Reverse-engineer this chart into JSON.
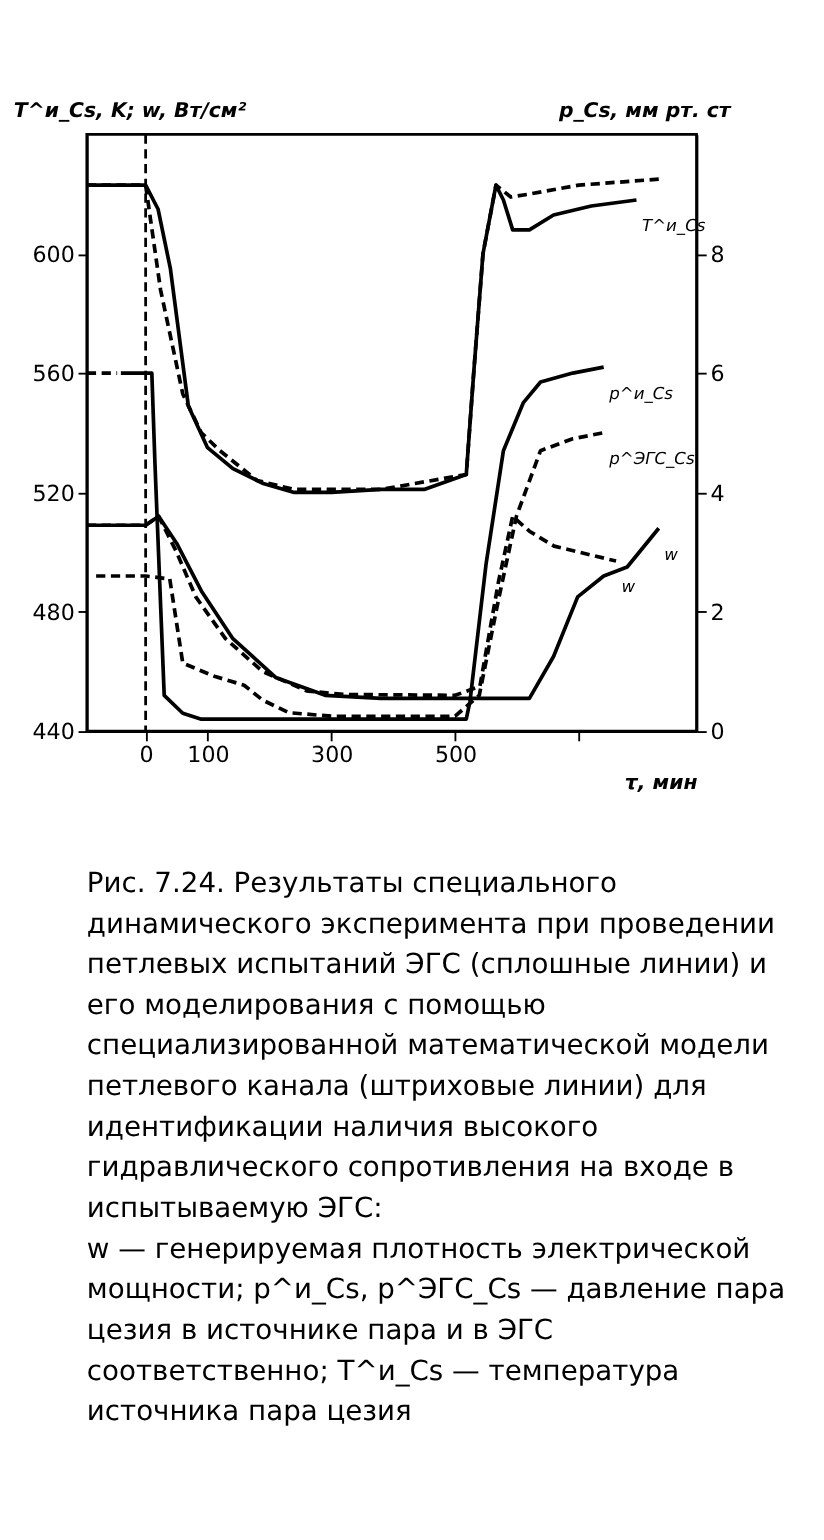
{
  "chart_data": {
    "type": "line",
    "xlabel": "τ, мин",
    "ylabel": "T^и_Cs, K; w, Вт/см²",
    "y2label": "p_Cs, мм рт. ст",
    "xlim": [
      -95,
      890
    ],
    "xticks": [
      0,
      100,
      300,
      500,
      {
        "value": 700,
        "label": null
      }
    ],
    "ylim": [
      440,
      640
    ],
    "yticks": [
      440,
      480,
      520,
      560,
      600
    ],
    "y2lim": [
      0,
      10
    ],
    "y2ticks": [
      0,
      2,
      4,
      6,
      8
    ],
    "ref_lines": [
      {
        "axis": "x",
        "value": 0,
        "label": null,
        "color": "#000000",
        "line_style": "dashed"
      }
    ],
    "series": [
      {
        "name": "T^и_Cs",
        "color": "#000000",
        "line_style": "solid",
        "axis": "y",
        "x": [
          -95,
          0,
          20,
          40,
          69,
          100,
          141,
          190,
          240,
          300,
          380,
          450,
          518,
          530,
          545,
          566,
          578,
          593,
          620,
          659,
          720,
          793
        ],
        "values": [
          623,
          623,
          615,
          595,
          549,
          535,
          528,
          523,
          520,
          520,
          521,
          521,
          526,
          560,
          600,
          623,
          618,
          608,
          608,
          613,
          616,
          618
        ]
      },
      {
        "color": "#000000",
        "line_style": "dashed",
        "axis": "y",
        "x": [
          -95,
          0,
          24,
          60,
          90,
          120,
          180,
          240,
          380,
          518,
          530,
          545,
          566,
          590,
          620,
          700,
          829
        ],
        "values": [
          623,
          623,
          588,
          553,
          540,
          534,
          524,
          521,
          521,
          526,
          560,
          600,
          623,
          619,
          620,
          623,
          625
        ]
      },
      {
        "name": "w",
        "color": "#000000",
        "line_style": "solid",
        "axis": "y",
        "x": [
          -95,
          0,
          21,
          50,
          90,
          141,
          210,
          290,
          380,
          530,
          580,
          620,
          659,
          698,
          740,
          778,
          829
        ],
        "values": [
          509,
          509,
          512,
          503,
          487,
          471,
          458,
          452,
          451,
          451,
          451,
          451,
          465,
          485,
          492,
          495,
          508
        ]
      },
      {
        "name": "w",
        "color": "#000000",
        "line_style": "dashed",
        "axis": "y",
        "x": [
          -95,
          0,
          21,
          50,
          81,
          129,
          189,
          260,
          320,
          500,
          540,
          570,
          593,
          620,
          660,
          700,
          760
        ],
        "values": [
          509,
          509,
          512,
          500,
          485,
          471,
          460,
          453.5,
          452.3,
          452,
          455,
          490,
          512,
          507,
          502,
          500,
          497
        ]
      },
      {
        "name": "p^и_Cs",
        "color": "#000000",
        "line_style": "solid",
        "axis": "y2",
        "x": [
          -40,
          0,
          10,
          15,
          30,
          60,
          90,
          150,
          300,
          518,
          524,
          550,
          578,
          610,
          638,
          690,
          740
        ],
        "values": [
          6.0,
          6.0,
          6.0,
          4.5,
          0.6,
          0.3,
          0.2,
          0.2,
          0.2,
          0.2,
          0.5,
          2.8,
          4.7,
          5.5,
          5.85,
          6.0,
          6.1
        ]
      },
      {
        "color": "#000000",
        "line_style": "dashed",
        "axis": "y2",
        "x": [
          -95,
          -46
        ],
        "values": [
          6.0,
          6.0
        ]
      },
      {
        "name": "p^ЭГС_Cs",
        "color": "#000000",
        "line_style": "dashed",
        "axis": "y2",
        "x": [
          -80,
          0,
          39,
          60,
          111,
          159,
          189,
          231,
          300,
          500,
          539,
          570,
          599,
          638,
          690,
          740
        ],
        "values": [
          2.6,
          2.6,
          2.55,
          1.14,
          0.92,
          0.77,
          0.52,
          0.31,
          0.25,
          0.25,
          0.6,
          2.2,
          3.6,
          4.7,
          4.9,
          5.0
        ]
      }
    ],
    "annotations": [
      "Рис. 7.24. Результаты специального динамического эксперимента при проведении петлевых испытаний ЭГС (сплошные линии) и его моделирования с помощью специализированной математической модели петлевого канала (штриховые линии) для идентификации наличия высокого гидравлического сопротивления на входе в испытываемую ЭГС:",
      "w — генерируемая плотность электрической мощности; p^и_Cs, p^ЭГС_Cs — давление пара цезия в источнике пара и в ЭГС соответственно; T^и_Cs — температура источника пара цезия"
    ]
  }
}
